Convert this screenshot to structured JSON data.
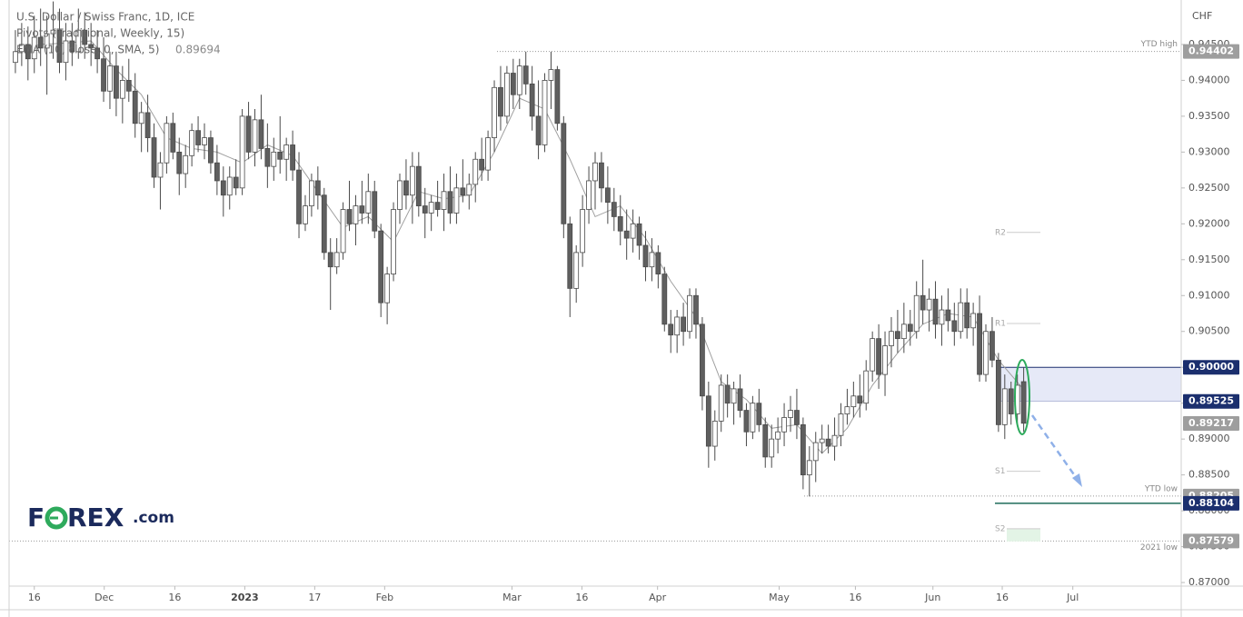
{
  "chart_data": {
    "type": "candlestick",
    "title": "U.S. Dollar / Swiss Franc, 1D, ICE",
    "indicators": [
      "Pivots (Traditional, Weekly, 15)",
      "EMA (10, close, 0, SMA, 5)"
    ],
    "ema_value": 0.89694,
    "currency": "CHF",
    "logo": {
      "left": "F",
      "right": "REX",
      "suffix": ".com"
    },
    "xlim": [
      -1,
      185
    ],
    "xticks": [
      {
        "value": 3,
        "label": "16"
      },
      {
        "value": 14.1,
        "label": "Dec"
      },
      {
        "value": 25.3,
        "label": "16"
      },
      {
        "value": 36.4,
        "label": "2023"
      },
      {
        "value": 47.5,
        "label": "17"
      },
      {
        "value": 58.6,
        "label": "Feb"
      },
      {
        "value": 78.8,
        "label": "Mar"
      },
      {
        "value": 89.9,
        "label": "16"
      },
      {
        "value": 101.9,
        "label": "Apr"
      },
      {
        "value": 121.2,
        "label": "May"
      },
      {
        "value": 133.3,
        "label": "16"
      },
      {
        "value": 145.6,
        "label": "Jun"
      },
      {
        "value": 156.6,
        "label": "16"
      },
      {
        "value": 167.8,
        "label": "Jul"
      }
    ],
    "ylim": [
      0.8695,
      0.9512
    ],
    "yticks": [
      {
        "value": 0.945,
        "label": "0.94500"
      },
      {
        "value": 0.94,
        "label": "0.94000"
      },
      {
        "value": 0.935,
        "label": "0.93500"
      },
      {
        "value": 0.93,
        "label": "0.93000"
      },
      {
        "value": 0.925,
        "label": "0.92500"
      },
      {
        "value": 0.92,
        "label": "0.92000"
      },
      {
        "value": 0.915,
        "label": "0.91500"
      },
      {
        "value": 0.91,
        "label": "0.91000"
      },
      {
        "value": 0.905,
        "label": "0.90500"
      },
      {
        "value": 0.9,
        "label": "0.90000"
      },
      {
        "value": 0.895,
        "label": "0.89500"
      },
      {
        "value": 0.89,
        "label": "0.89000"
      },
      {
        "value": 0.885,
        "label": "0.88500"
      },
      {
        "value": 0.88,
        "label": "0.88000"
      },
      {
        "value": 0.875,
        "label": "0.87500"
      },
      {
        "value": 0.87,
        "label": "0.87000"
      }
    ],
    "bull_color": "#ffffff",
    "bear_color": "#5f5f5f",
    "wick_color": "#4a4a4a",
    "candles": [
      [
        0.9425,
        0.947,
        0.941,
        0.944
      ],
      [
        0.944,
        0.948,
        0.942,
        0.945
      ],
      [
        0.945,
        0.9475,
        0.94,
        0.943
      ],
      [
        0.943,
        0.949,
        0.941,
        0.946
      ],
      [
        0.946,
        0.95,
        0.942,
        0.9445
      ],
      [
        0.9445,
        0.949,
        0.938,
        0.9465
      ],
      [
        0.9465,
        0.951,
        0.943,
        0.947
      ],
      [
        0.947,
        0.95,
        0.941,
        0.9425
      ],
      [
        0.9425,
        0.948,
        0.94,
        0.9455
      ],
      [
        0.9455,
        0.948,
        0.942,
        0.944
      ],
      [
        0.944,
        0.95,
        0.943,
        0.947
      ],
      [
        0.947,
        0.9495,
        0.943,
        0.945
      ],
      [
        0.945,
        0.948,
        0.942,
        0.9445
      ],
      [
        0.9445,
        0.947,
        0.941,
        0.943
      ],
      [
        0.943,
        0.946,
        0.937,
        0.9385
      ],
      [
        0.9385,
        0.944,
        0.936,
        0.942
      ],
      [
        0.942,
        0.944,
        0.935,
        0.9375
      ],
      [
        0.9375,
        0.942,
        0.934,
        0.94
      ],
      [
        0.94,
        0.943,
        0.937,
        0.9385
      ],
      [
        0.9385,
        0.941,
        0.932,
        0.934
      ],
      [
        0.934,
        0.937,
        0.93,
        0.9355
      ],
      [
        0.9355,
        0.938,
        0.93,
        0.932
      ],
      [
        0.932,
        0.934,
        0.925,
        0.9265
      ],
      [
        0.9265,
        0.93,
        0.922,
        0.9285
      ],
      [
        0.9285,
        0.935,
        0.927,
        0.934
      ],
      [
        0.934,
        0.9355,
        0.929,
        0.93
      ],
      [
        0.93,
        0.932,
        0.924,
        0.927
      ],
      [
        0.927,
        0.931,
        0.925,
        0.9295
      ],
      [
        0.9295,
        0.934,
        0.928,
        0.933
      ],
      [
        0.933,
        0.935,
        0.93,
        0.931
      ],
      [
        0.931,
        0.934,
        0.929,
        0.932
      ],
      [
        0.932,
        0.933,
        0.927,
        0.9285
      ],
      [
        0.9285,
        0.931,
        0.924,
        0.926
      ],
      [
        0.926,
        0.928,
        0.921,
        0.924
      ],
      [
        0.924,
        0.928,
        0.922,
        0.9265
      ],
      [
        0.9265,
        0.929,
        0.924,
        0.925
      ],
      [
        0.925,
        0.936,
        0.924,
        0.935
      ],
      [
        0.935,
        0.937,
        0.929,
        0.93
      ],
      [
        0.93,
        0.936,
        0.928,
        0.9345
      ],
      [
        0.9345,
        0.938,
        0.929,
        0.9305
      ],
      [
        0.9305,
        0.934,
        0.925,
        0.928
      ],
      [
        0.928,
        0.932,
        0.926,
        0.93
      ],
      [
        0.93,
        0.935,
        0.927,
        0.929
      ],
      [
        0.929,
        0.932,
        0.926,
        0.931
      ],
      [
        0.931,
        0.933,
        0.926,
        0.9275
      ],
      [
        0.9275,
        0.93,
        0.918,
        0.92
      ],
      [
        0.92,
        0.924,
        0.919,
        0.9225
      ],
      [
        0.9225,
        0.927,
        0.921,
        0.926
      ],
      [
        0.926,
        0.928,
        0.922,
        0.924
      ],
      [
        0.924,
        0.925,
        0.915,
        0.916
      ],
      [
        0.916,
        0.918,
        0.908,
        0.914
      ],
      [
        0.914,
        0.918,
        0.913,
        0.916
      ],
      [
        0.916,
        0.923,
        0.915,
        0.922
      ],
      [
        0.922,
        0.926,
        0.919,
        0.92
      ],
      [
        0.92,
        0.924,
        0.917,
        0.9225
      ],
      [
        0.9225,
        0.926,
        0.92,
        0.9215
      ],
      [
        0.9215,
        0.927,
        0.92,
        0.9245
      ],
      [
        0.9245,
        0.926,
        0.918,
        0.919
      ],
      [
        0.919,
        0.92,
        0.907,
        0.909
      ],
      [
        0.909,
        0.914,
        0.906,
        0.913
      ],
      [
        0.913,
        0.923,
        0.912,
        0.922
      ],
      [
        0.922,
        0.927,
        0.92,
        0.926
      ],
      [
        0.926,
        0.929,
        0.922,
        0.924
      ],
      [
        0.924,
        0.93,
        0.92,
        0.928
      ],
      [
        0.928,
        0.93,
        0.921,
        0.9225
      ],
      [
        0.9225,
        0.925,
        0.918,
        0.9215
      ],
      [
        0.9215,
        0.924,
        0.919,
        0.923
      ],
      [
        0.923,
        0.926,
        0.921,
        0.922
      ],
      [
        0.922,
        0.927,
        0.919,
        0.9245
      ],
      [
        0.9245,
        0.928,
        0.92,
        0.9215
      ],
      [
        0.9215,
        0.927,
        0.92,
        0.925
      ],
      [
        0.925,
        0.929,
        0.923,
        0.924
      ],
      [
        0.924,
        0.927,
        0.922,
        0.9255
      ],
      [
        0.9255,
        0.93,
        0.923,
        0.929
      ],
      [
        0.929,
        0.932,
        0.926,
        0.9275
      ],
      [
        0.9275,
        0.933,
        0.926,
        0.932
      ],
      [
        0.932,
        0.94,
        0.93,
        0.939
      ],
      [
        0.939,
        0.942,
        0.933,
        0.935
      ],
      [
        0.935,
        0.942,
        0.934,
        0.941
      ],
      [
        0.941,
        0.943,
        0.936,
        0.938
      ],
      [
        0.938,
        0.943,
        0.936,
        0.942
      ],
      [
        0.942,
        0.944,
        0.938,
        0.9395
      ],
      [
        0.9395,
        0.942,
        0.933,
        0.935
      ],
      [
        0.935,
        0.94,
        0.929,
        0.931
      ],
      [
        0.931,
        0.941,
        0.93,
        0.94
      ],
      [
        0.94,
        0.944,
        0.936,
        0.9415
      ],
      [
        0.9415,
        0.942,
        0.933,
        0.934
      ],
      [
        0.934,
        0.935,
        0.918,
        0.92
      ],
      [
        0.92,
        0.921,
        0.907,
        0.911
      ],
      [
        0.911,
        0.917,
        0.909,
        0.916
      ],
      [
        0.916,
        0.924,
        0.914,
        0.922
      ],
      [
        0.922,
        0.928,
        0.92,
        0.926
      ],
      [
        0.926,
        0.93,
        0.922,
        0.9285
      ],
      [
        0.9285,
        0.93,
        0.923,
        0.925
      ],
      [
        0.925,
        0.928,
        0.92,
        0.923
      ],
      [
        0.923,
        0.925,
        0.919,
        0.921
      ],
      [
        0.921,
        0.924,
        0.917,
        0.919
      ],
      [
        0.919,
        0.922,
        0.915,
        0.918
      ],
      [
        0.918,
        0.922,
        0.916,
        0.92
      ],
      [
        0.92,
        0.921,
        0.915,
        0.917
      ],
      [
        0.917,
        0.919,
        0.912,
        0.914
      ],
      [
        0.914,
        0.918,
        0.912,
        0.916
      ],
      [
        0.916,
        0.917,
        0.911,
        0.913
      ],
      [
        0.913,
        0.914,
        0.905,
        0.906
      ],
      [
        0.906,
        0.908,
        0.902,
        0.9045
      ],
      [
        0.9045,
        0.908,
        0.902,
        0.907
      ],
      [
        0.907,
        0.909,
        0.903,
        0.905
      ],
      [
        0.905,
        0.911,
        0.904,
        0.91
      ],
      [
        0.91,
        0.911,
        0.904,
        0.906
      ],
      [
        0.906,
        0.907,
        0.894,
        0.896
      ],
      [
        0.896,
        0.898,
        0.886,
        0.889
      ],
      [
        0.889,
        0.894,
        0.887,
        0.8925
      ],
      [
        0.8925,
        0.899,
        0.891,
        0.8975
      ],
      [
        0.8975,
        0.899,
        0.893,
        0.895
      ],
      [
        0.895,
        0.898,
        0.892,
        0.897
      ],
      [
        0.897,
        0.899,
        0.893,
        0.894
      ],
      [
        0.894,
        0.895,
        0.889,
        0.891
      ],
      [
        0.891,
        0.896,
        0.89,
        0.895
      ],
      [
        0.895,
        0.897,
        0.891,
        0.892
      ],
      [
        0.892,
        0.893,
        0.886,
        0.8875
      ],
      [
        0.8875,
        0.892,
        0.886,
        0.89
      ],
      [
        0.89,
        0.893,
        0.888,
        0.891
      ],
      [
        0.891,
        0.895,
        0.889,
        0.893
      ],
      [
        0.893,
        0.896,
        0.891,
        0.894
      ],
      [
        0.894,
        0.897,
        0.89,
        0.892
      ],
      [
        0.892,
        0.893,
        0.883,
        0.885
      ],
      [
        0.885,
        0.889,
        0.882,
        0.887
      ],
      [
        0.887,
        0.891,
        0.884,
        0.8895
      ],
      [
        0.8895,
        0.892,
        0.888,
        0.89
      ],
      [
        0.89,
        0.892,
        0.888,
        0.889
      ],
      [
        0.889,
        0.893,
        0.887,
        0.8905
      ],
      [
        0.8905,
        0.895,
        0.889,
        0.8935
      ],
      [
        0.8935,
        0.897,
        0.892,
        0.8945
      ],
      [
        0.8945,
        0.898,
        0.893,
        0.896
      ],
      [
        0.896,
        0.899,
        0.893,
        0.895
      ],
      [
        0.895,
        0.901,
        0.894,
        0.8995
      ],
      [
        0.8995,
        0.905,
        0.898,
        0.904
      ],
      [
        0.904,
        0.906,
        0.897,
        0.899
      ],
      [
        0.899,
        0.905,
        0.896,
        0.903
      ],
      [
        0.903,
        0.907,
        0.9,
        0.905
      ],
      [
        0.905,
        0.908,
        0.902,
        0.904
      ],
      [
        0.904,
        0.909,
        0.902,
        0.906
      ],
      [
        0.906,
        0.908,
        0.903,
        0.905
      ],
      [
        0.905,
        0.912,
        0.904,
        0.91
      ],
      [
        0.91,
        0.915,
        0.906,
        0.908
      ],
      [
        0.908,
        0.911,
        0.905,
        0.9095
      ],
      [
        0.9095,
        0.912,
        0.904,
        0.906
      ],
      [
        0.906,
        0.91,
        0.903,
        0.908
      ],
      [
        0.908,
        0.911,
        0.905,
        0.9065
      ],
      [
        0.9065,
        0.909,
        0.903,
        0.905
      ],
      [
        0.905,
        0.911,
        0.904,
        0.909
      ],
      [
        0.909,
        0.911,
        0.904,
        0.9055
      ],
      [
        0.9055,
        0.909,
        0.903,
        0.9075
      ],
      [
        0.9075,
        0.91,
        0.898,
        0.899
      ],
      [
        0.899,
        0.906,
        0.898,
        0.905
      ],
      [
        0.905,
        0.907,
        0.9,
        0.901
      ],
      [
        0.901,
        0.902,
        0.891,
        0.892
      ],
      [
        0.892,
        0.899,
        0.89,
        0.897
      ],
      [
        0.897,
        0.898,
        0.892,
        0.8935
      ],
      [
        0.8935,
        0.899,
        0.892,
        0.8975
      ],
      [
        0.898,
        0.9,
        0.891,
        0.8922
      ]
    ],
    "ema": {
      "color": "#a0a0a0",
      "x": [
        0,
        4,
        8,
        12,
        16,
        20,
        24,
        28,
        32,
        36,
        40,
        44,
        48,
        52,
        56,
        60,
        64,
        68,
        72,
        76,
        80,
        84,
        88,
        92,
        96,
        100,
        104,
        108,
        112,
        116,
        120,
        124,
        128,
        132,
        136,
        140,
        144,
        148,
        152,
        156,
        160
      ],
      "values": [
        0.944,
        0.945,
        0.9452,
        0.9455,
        0.9415,
        0.938,
        0.932,
        0.9305,
        0.93,
        0.9285,
        0.931,
        0.9295,
        0.9245,
        0.9195,
        0.921,
        0.9175,
        0.9245,
        0.9235,
        0.924,
        0.93,
        0.9375,
        0.936,
        0.929,
        0.921,
        0.9225,
        0.918,
        0.912,
        0.907,
        0.898,
        0.8955,
        0.8915,
        0.892,
        0.888,
        0.8915,
        0.8975,
        0.902,
        0.906,
        0.9075,
        0.907,
        0.901,
        0.8969
      ]
    },
    "levels": [
      {
        "name": "YTD high",
        "value": 0.94402
      },
      {
        "name": "YTD low",
        "value": 0.88205
      },
      {
        "name": "2021 low",
        "value": 0.87579
      }
    ],
    "pivots": [
      {
        "name": "R2",
        "value": 0.9188
      },
      {
        "name": "R1",
        "value": 0.9061
      },
      {
        "name": "S1",
        "value": 0.8855
      },
      {
        "name": "S2",
        "value": 0.8775
      }
    ],
    "zone": {
      "color": "#e6e9f7",
      "edge": "#1b2f6e",
      "values": [
        0.89525,
        0.9
      ]
    },
    "support": {
      "color": "#1e6b5a",
      "value": 0.88104
    },
    "price_tags": [
      {
        "value": 0.94402,
        "label": "0.94402",
        "color": "#9e9e9e"
      },
      {
        "value": 0.9,
        "label": "0.90000",
        "color": "#1b2f6e"
      },
      {
        "value": 0.89525,
        "label": "0.89525",
        "color": "#1b2f6e"
      },
      {
        "value": 0.89217,
        "label": "0.89217",
        "color": "#9e9e9e"
      },
      {
        "value": 0.88205,
        "label": "0.88205",
        "color": "#9e9e9e"
      },
      {
        "value": 0.88104,
        "label": "0.88104",
        "color": "#1b2f6e"
      },
      {
        "value": 0.87579,
        "label": "0.87579",
        "color": "#9e9e9e"
      }
    ]
  }
}
